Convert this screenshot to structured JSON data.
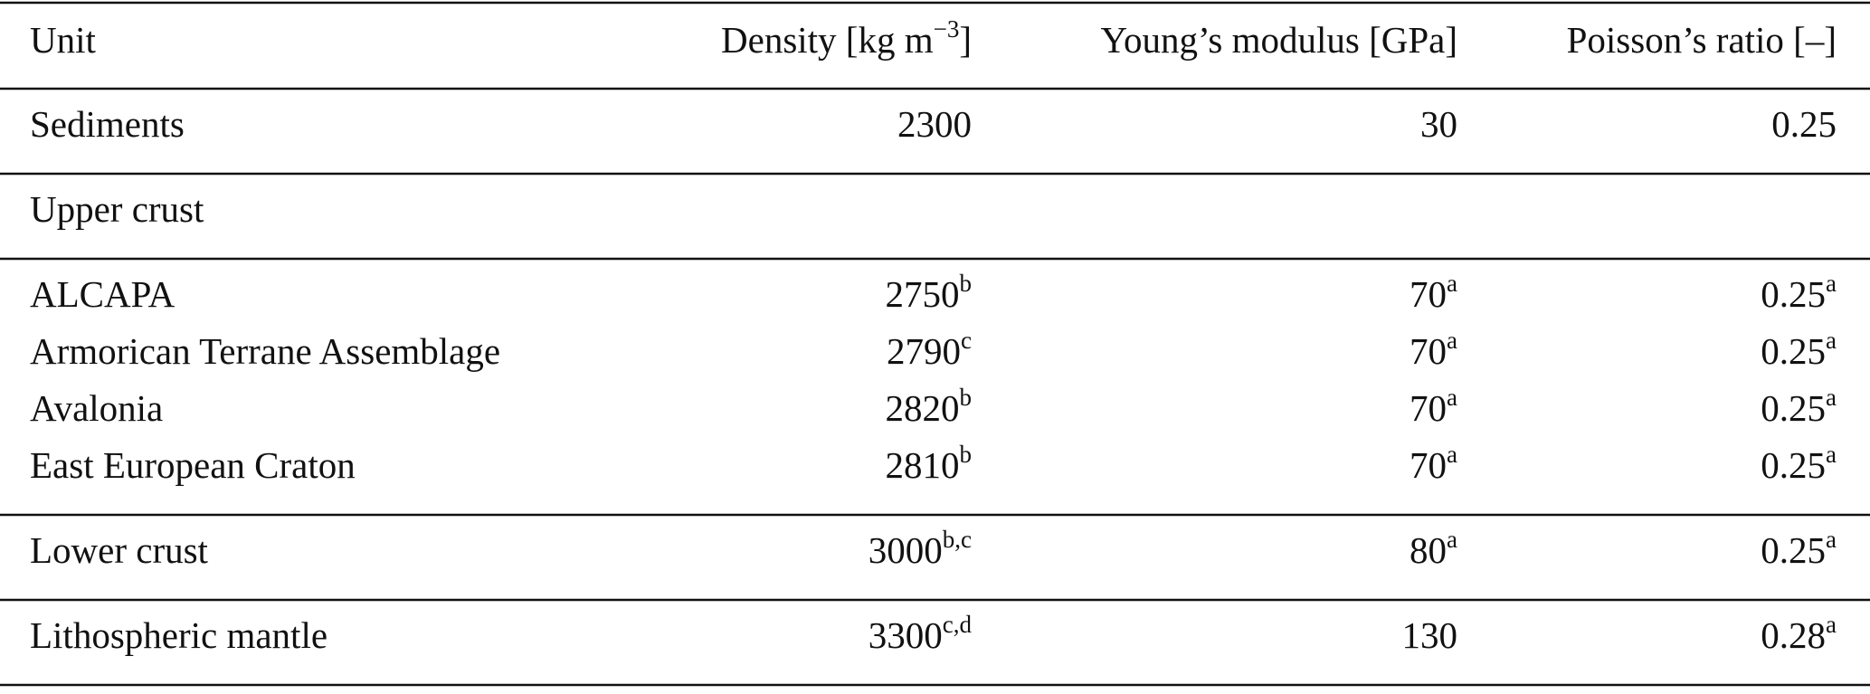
{
  "table": {
    "header": [
      {
        "text": "Unit"
      },
      {
        "text": "Density [kg m",
        "sup": "−3",
        "after": "]"
      },
      {
        "text": "Young’s modulus [GPa]"
      },
      {
        "text": "Poisson’s ratio [–]"
      }
    ],
    "groups": [
      [
        [
          {
            "text": "Sediments"
          },
          {
            "text": 2300
          },
          {
            "text": 30
          },
          {
            "text": 0.25
          }
        ]
      ],
      [
        [
          {
            "text": "Upper crust"
          }
        ]
      ],
      [
        [
          {
            "text": "ALCAPA"
          },
          {
            "text": 2750,
            "sup": "b"
          },
          {
            "text": 70,
            "sup": "a"
          },
          {
            "text": 0.25,
            "sup": "a"
          }
        ],
        [
          {
            "text": "Armorican Terrane Assemblage"
          },
          {
            "text": 2790,
            "sup": "c"
          },
          {
            "text": 70,
            "sup": "a"
          },
          {
            "text": 0.25,
            "sup": "a"
          }
        ],
        [
          {
            "text": "Avalonia"
          },
          {
            "text": 2820,
            "sup": "b"
          },
          {
            "text": 70,
            "sup": "a"
          },
          {
            "text": 0.25,
            "sup": "a"
          }
        ],
        [
          {
            "text": "East European Craton"
          },
          {
            "text": 2810,
            "sup": "b"
          },
          {
            "text": 70,
            "sup": "a"
          },
          {
            "text": 0.25,
            "sup": "a"
          }
        ]
      ],
      [
        [
          {
            "text": "Lower crust"
          },
          {
            "text": 3000,
            "sup": "b,c"
          },
          {
            "text": 80,
            "sup": "a"
          },
          {
            "text": 0.25,
            "sup": "a"
          }
        ]
      ],
      [
        [
          {
            "text": "Lithospheric mantle"
          },
          {
            "text": 3300,
            "sup": "c,d"
          },
          {
            "text": 130
          },
          {
            "text": 0.28,
            "sup": "a"
          }
        ]
      ]
    ]
  }
}
